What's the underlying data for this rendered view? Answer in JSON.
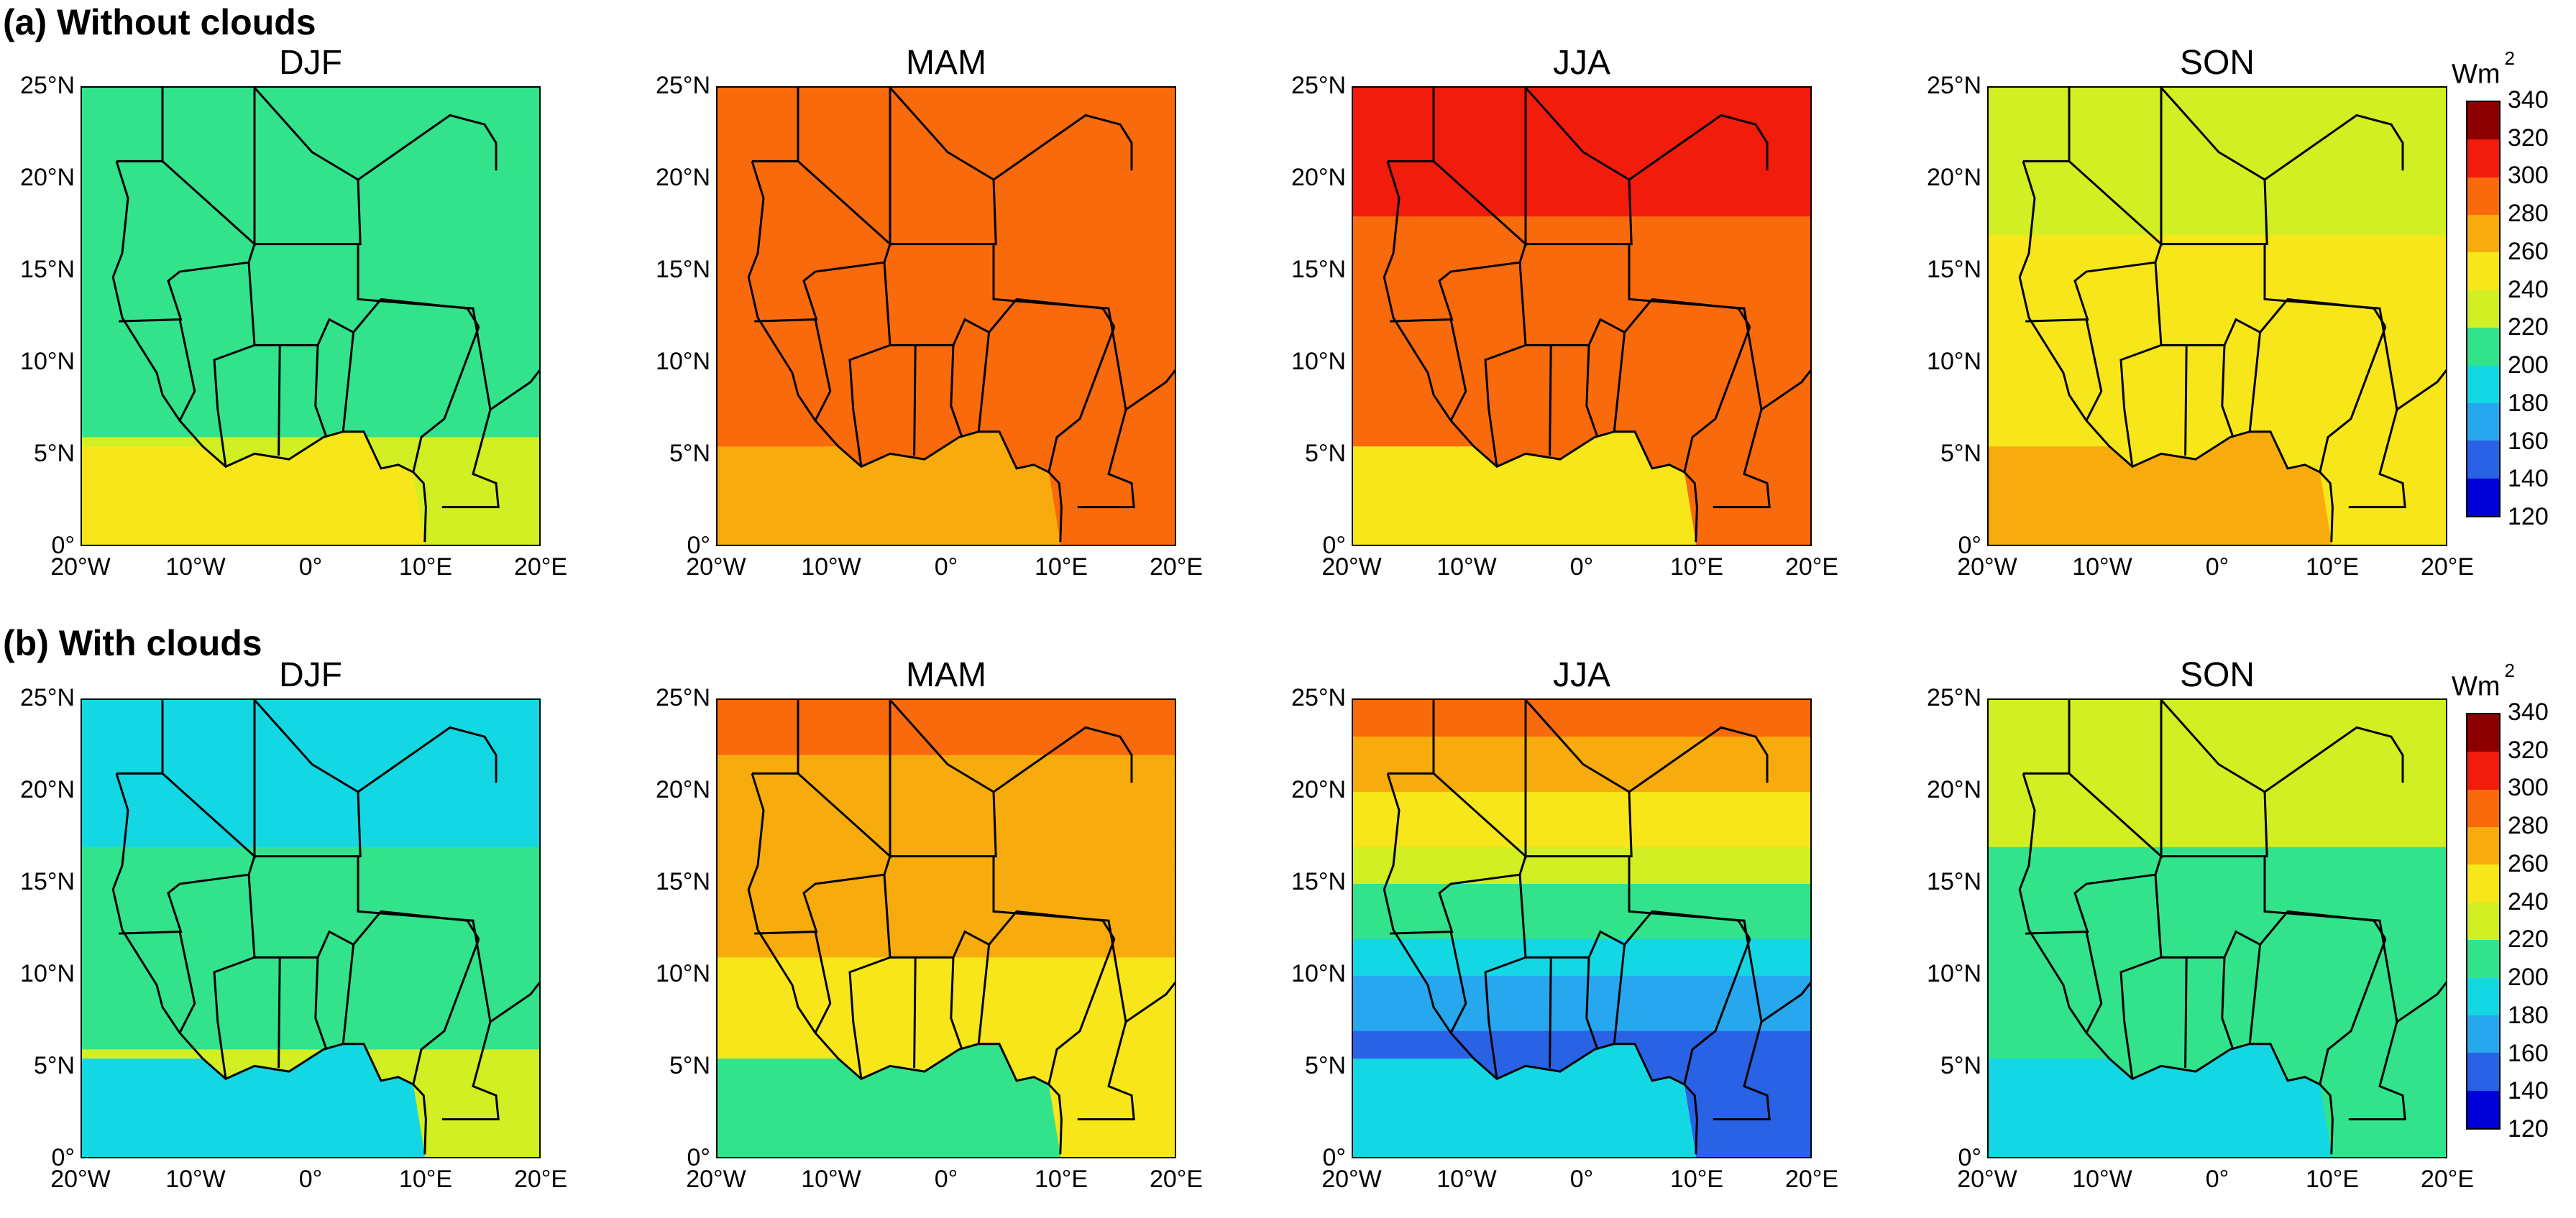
{
  "figure": {
    "rows": [
      {
        "id": "a",
        "title": "(a) Without clouds"
      },
      {
        "id": "b",
        "title": "(b) With clouds"
      }
    ],
    "seasons": [
      "DJF",
      "MAM",
      "JJA",
      "SON"
    ],
    "lat_ticks": [
      "25°N",
      "20°N",
      "15°N",
      "10°N",
      "5°N",
      "0°"
    ],
    "lon_ticks": [
      "20°W",
      "10°W",
      "0°",
      "10°E",
      "20°E"
    ],
    "colorbar": {
      "unit": "Wm",
      "unit_exp": "2",
      "levels": [
        120,
        140,
        160,
        180,
        200,
        220,
        240,
        260,
        280,
        300,
        320,
        340
      ],
      "colors": [
        "#00007a",
        "#0000d8",
        "#2a62e6",
        "#27a7ee",
        "#14d7e4",
        "#33e38b",
        "#d1ef23",
        "#f7e61a",
        "#f8ab0c",
        "#f96a0c",
        "#f21c0c",
        "#8c0000"
      ]
    }
  },
  "chart_data": {
    "type": "heatmap",
    "description_units": "Wm-2",
    "x_range": [
      -20,
      20
    ],
    "y_range": [
      0,
      25
    ],
    "panels": [
      {
        "row": "a",
        "season": "DJF",
        "north_value": 220,
        "south_value": 240,
        "gulf_value": 270
      },
      {
        "row": "a",
        "season": "MAM",
        "north_value": 310,
        "south_value": 300,
        "gulf_value": 295
      },
      {
        "row": "a",
        "season": "JJA",
        "north_value": 330,
        "south_value": 300,
        "gulf_value": 270
      },
      {
        "row": "a",
        "season": "SON",
        "north_value": 250,
        "south_value": 275,
        "gulf_value": 295
      },
      {
        "row": "b",
        "season": "DJF",
        "north_value": 205,
        "south_value": 240,
        "gulf_value": 215
      },
      {
        "row": "b",
        "season": "MAM",
        "north_value": 305,
        "south_value": 270,
        "gulf_value": 230
      },
      {
        "row": "b",
        "season": "JJA",
        "north_value": 315,
        "south_value": 170,
        "gulf_value": 215
      },
      {
        "row": "b",
        "season": "SON",
        "north_value": 255,
        "south_value": 220,
        "gulf_value": 215
      }
    ]
  }
}
